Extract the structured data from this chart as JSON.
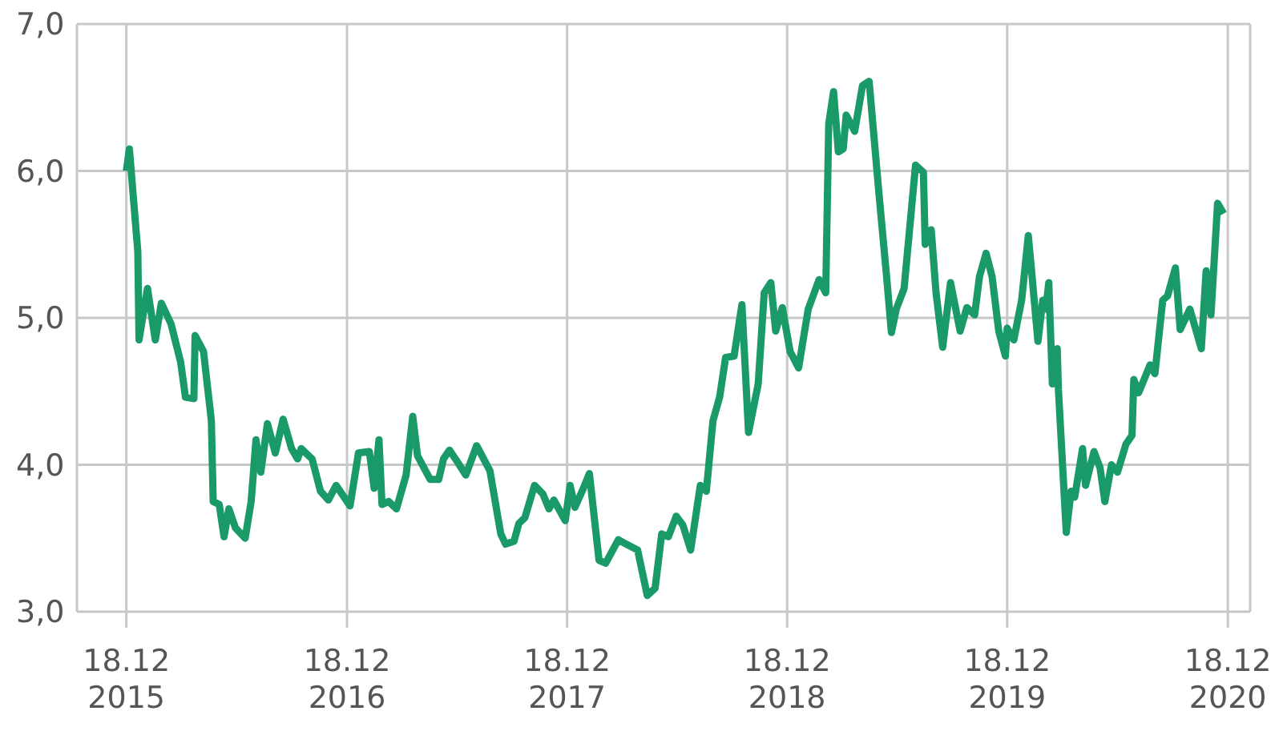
{
  "chart_data": {
    "type": "line",
    "color": "#1a9a68",
    "grid": true,
    "marker": "none",
    "line_style": "solid",
    "ylim": [
      3,
      7
    ],
    "yticks": [
      {
        "value": 3,
        "label": "3,0"
      },
      {
        "value": 4,
        "label": "4,0"
      },
      {
        "value": 5,
        "label": "5,0"
      },
      {
        "value": 6,
        "label": "6,0"
      },
      {
        "value": 7,
        "label": "7,0"
      }
    ],
    "xlim": [
      "2015-09-27",
      "2021-01-24"
    ],
    "xticks": [
      {
        "value": "2015-12-18",
        "label": "18.12\n2015"
      },
      {
        "value": "2016-12-18",
        "label": "18.12\n2016"
      },
      {
        "value": "2017-12-18",
        "label": "18.12\n2017"
      },
      {
        "value": "2018-12-18",
        "label": "18.12\n2018"
      },
      {
        "value": "2019-12-18",
        "label": "18.12\n2019"
      },
      {
        "value": "2020-12-18",
        "label": "18.12\n2020"
      }
    ],
    "x": [
      "2015-12-18",
      "2015-12-23",
      "2016-01-06",
      "2016-01-08",
      "2016-01-22",
      "2016-02-04",
      "2016-02-14",
      "2016-03-01",
      "2016-03-17",
      "2016-03-25",
      "2016-04-08",
      "2016-04-10",
      "2016-04-24",
      "2016-05-07",
      "2016-05-10",
      "2016-05-20",
      "2016-05-28",
      "2016-06-05",
      "2016-06-16",
      "2016-07-02",
      "2016-07-12",
      "2016-07-20",
      "2016-07-28",
      "2016-08-08",
      "2016-08-21",
      "2016-09-03",
      "2016-09-17",
      "2016-09-27",
      "2016-10-03",
      "2016-10-21",
      "2016-11-04",
      "2016-11-17",
      "2016-11-30",
      "2016-12-23",
      "2017-01-06",
      "2017-01-24",
      "2017-02-01",
      "2017-02-09",
      "2017-02-14",
      "2017-02-25",
      "2017-03-10",
      "2017-03-26",
      "2017-04-06",
      "2017-04-14",
      "2017-05-05",
      "2017-05-19",
      "2017-05-27",
      "2017-06-06",
      "2017-06-19",
      "2017-07-03",
      "2017-07-21",
      "2017-08-12",
      "2017-08-30",
      "2017-09-07",
      "2017-09-21",
      "2017-09-29",
      "2017-10-09",
      "2017-10-25",
      "2017-11-08",
      "2017-11-18",
      "2017-11-26",
      "2017-12-15",
      "2017-12-23",
      "2017-12-31",
      "2018-01-14",
      "2018-01-24",
      "2018-02-09",
      "2018-02-20",
      "2018-03-13",
      "2018-03-26",
      "2018-04-14",
      "2018-04-30",
      "2018-05-13",
      "2018-05-24",
      "2018-06-04",
      "2018-06-17",
      "2018-06-28",
      "2018-07-11",
      "2018-07-27",
      "2018-08-06",
      "2018-08-17",
      "2018-08-28",
      "2018-09-07",
      "2018-09-21",
      "2018-10-04",
      "2018-10-15",
      "2018-10-31",
      "2018-11-10",
      "2018-11-21",
      "2018-11-29",
      "2018-12-10",
      "2018-12-23",
      "2019-01-06",
      "2019-01-22",
      "2019-02-09",
      "2019-02-20",
      "2019-02-25",
      "2019-03-05",
      "2019-03-13",
      "2019-03-21",
      "2019-03-26",
      "2019-04-09",
      "2019-04-22",
      "2019-05-03",
      "2019-05-19",
      "2019-06-01",
      "2019-06-09",
      "2019-06-17",
      "2019-06-30",
      "2019-07-19",
      "2019-08-01",
      "2019-08-04",
      "2019-08-14",
      "2019-08-22",
      "2019-09-02",
      "2019-09-15",
      "2019-10-01",
      "2019-10-12",
      "2019-10-25",
      "2019-11-02",
      "2019-11-13",
      "2019-11-23",
      "2019-12-04",
      "2019-12-15",
      "2019-12-18",
      "2019-12-29",
      "2020-01-11",
      "2020-01-22",
      "2020-01-27",
      "2020-02-07",
      "2020-02-15",
      "2020-02-20",
      "2020-02-25",
      "2020-03-02",
      "2020-03-10",
      "2020-03-12",
      "2020-03-25",
      "2020-04-02",
      "2020-04-08",
      "2020-04-21",
      "2020-04-26",
      "2020-05-10",
      "2020-05-20",
      "2020-05-28",
      "2020-06-08",
      "2020-06-18",
      "2020-07-02",
      "2020-07-12",
      "2020-07-15",
      "2020-07-23",
      "2020-08-11",
      "2020-08-19",
      "2020-09-01",
      "2020-09-09",
      "2020-09-22",
      "2020-09-30",
      "2020-10-16",
      "2020-11-04",
      "2020-11-12",
      "2020-11-20",
      "2020-12-01",
      "2020-12-11"
    ],
    "values": [
      6.0,
      6.15,
      5.45,
      4.85,
      5.2,
      4.85,
      5.1,
      4.96,
      4.7,
      4.46,
      4.45,
      4.88,
      4.77,
      4.3,
      3.75,
      3.73,
      3.51,
      3.7,
      3.57,
      3.5,
      3.75,
      4.17,
      3.95,
      4.28,
      4.08,
      4.31,
      4.11,
      4.04,
      4.11,
      4.04,
      3.82,
      3.76,
      3.86,
      3.72,
      4.08,
      4.09,
      3.84,
      4.17,
      3.73,
      3.75,
      3.7,
      3.93,
      4.33,
      4.06,
      3.9,
      3.9,
      4.04,
      4.1,
      4.02,
      3.93,
      4.13,
      3.96,
      3.53,
      3.46,
      3.48,
      3.6,
      3.64,
      3.86,
      3.8,
      3.7,
      3.76,
      3.62,
      3.86,
      3.71,
      3.84,
      3.94,
      3.35,
      3.33,
      3.49,
      3.46,
      3.42,
      3.11,
      3.16,
      3.53,
      3.51,
      3.65,
      3.59,
      3.42,
      3.86,
      3.82,
      4.3,
      4.46,
      4.73,
      4.74,
      5.09,
      4.22,
      4.55,
      5.17,
      5.24,
      4.91,
      5.07,
      4.77,
      4.66,
      5.06,
      5.26,
      5.17,
      6.32,
      6.54,
      6.13,
      6.15,
      6.38,
      6.27,
      6.58,
      6.61,
      5.86,
      5.28,
      4.9,
      5.06,
      5.2,
      6.04,
      5.99,
      5.5,
      5.6,
      5.17,
      4.8,
      5.24,
      4.91,
      5.07,
      5.02,
      5.28,
      5.44,
      5.28,
      4.91,
      4.74,
      4.93,
      4.85,
      5.12,
      5.56,
      5.34,
      4.84,
      5.12,
      5.06,
      5.24,
      4.55,
      4.79,
      4.51,
      3.54,
      3.82,
      3.78,
      4.11,
      3.86,
      4.09,
      3.98,
      3.75,
      4.0,
      3.95,
      4.14,
      4.2,
      4.58,
      4.49,
      4.68,
      4.62,
      5.12,
      5.15,
      5.34,
      4.92,
      5.06,
      4.79,
      5.32,
      5.02,
      5.78,
      5.71
    ]
  }
}
